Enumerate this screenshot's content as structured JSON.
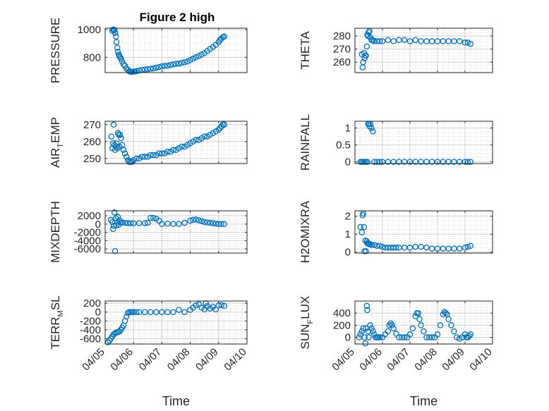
{
  "figure_title": "Figure 2 high",
  "colors": {
    "marker": "#0072BD",
    "axis": "#262626",
    "grid": "#dcdcdc"
  },
  "chart_data": [
    {
      "id": "pressure",
      "type": "scatter",
      "title": "Figure 2 high",
      "ylabel": "PRESSURE",
      "ylabel_parts": [
        "PRESSURE"
      ],
      "xlim": [
        0,
        5
      ],
      "ylim": [
        690,
        1010
      ],
      "yticks": [
        800,
        1000
      ],
      "ytick_labels": [
        "800",
        "1000"
      ],
      "xticks": [
        0,
        1,
        2,
        3,
        4,
        5
      ],
      "xtick_labels": [],
      "x": [
        0.25,
        0.28,
        0.3,
        0.33,
        0.35,
        0.38,
        0.4,
        0.43,
        0.45,
        0.48,
        0.5,
        0.53,
        0.56,
        0.6,
        0.65,
        0.7,
        0.75,
        0.8,
        0.85,
        0.9,
        0.95,
        1,
        1.05,
        1.1,
        1.2,
        1.3,
        1.4,
        1.5,
        1.6,
        1.7,
        1.8,
        1.9,
        2,
        2.1,
        2.2,
        2.3,
        2.4,
        2.5,
        2.6,
        2.7,
        2.8,
        2.9,
        3,
        3.1,
        3.2,
        3.3,
        3.4,
        3.5,
        3.6,
        3.7,
        3.8,
        3.9,
        4,
        4.05,
        4.1,
        4.15,
        4.2
      ],
      "y": [
        990,
        1000,
        1000,
        995,
        975,
        950,
        910,
        870,
        840,
        820,
        810,
        800,
        790,
        770,
        750,
        740,
        720,
        710,
        700,
        695,
        695,
        697,
        698,
        700,
        705,
        710,
        712,
        715,
        718,
        720,
        725,
        730,
        735,
        738,
        740,
        745,
        750,
        753,
        755,
        760,
        765,
        770,
        780,
        790,
        800,
        810,
        820,
        830,
        845,
        860,
        875,
        890,
        910,
        925,
        935,
        945,
        950
      ]
    },
    {
      "id": "theta",
      "type": "scatter",
      "ylabel": "THETA",
      "ylabel_parts": [
        "THETA"
      ],
      "xlim": [
        0,
        5
      ],
      "ylim": [
        252,
        286
      ],
      "yticks": [
        260,
        270,
        280
      ],
      "ytick_labels": [
        "260",
        "270",
        "280"
      ],
      "xticks": [
        0,
        1,
        2,
        3,
        4,
        5
      ],
      "xtick_labels": [],
      "x": [
        0.25,
        0.28,
        0.3,
        0.33,
        0.35,
        0.38,
        0.4,
        0.43,
        0.45,
        0.48,
        0.5,
        0.53,
        0.56,
        0.6,
        0.65,
        0.7,
        0.8,
        0.9,
        1,
        1.2,
        1.4,
        1.6,
        1.8,
        2,
        2.2,
        2.4,
        2.6,
        2.8,
        3,
        3.2,
        3.4,
        3.6,
        3.8,
        4,
        4.1,
        4.2
      ],
      "y": [
        266,
        256,
        260,
        267,
        263,
        265,
        265,
        272,
        281,
        280,
        283,
        284,
        279,
        277,
        277,
        276,
        276,
        276,
        276,
        277,
        276,
        277,
        277,
        276,
        277,
        276,
        276,
        276,
        276,
        276,
        276,
        276,
        276,
        275,
        275,
        274
      ]
    },
    {
      "id": "air_temp",
      "type": "scatter",
      "ylabel": "AIR_TEMP",
      "ylabel_parts": [
        "AIR",
        "T",
        "EMP"
      ],
      "xlim": [
        0,
        5
      ],
      "ylim": [
        247,
        272
      ],
      "yticks": [
        250,
        260,
        270
      ],
      "ytick_labels": [
        "250",
        "260",
        "270"
      ],
      "xticks": [
        0,
        1,
        2,
        3,
        4,
        5
      ],
      "xtick_labels": [],
      "x": [
        0.22,
        0.25,
        0.28,
        0.3,
        0.33,
        0.35,
        0.38,
        0.4,
        0.43,
        0.45,
        0.48,
        0.5,
        0.53,
        0.56,
        0.6,
        0.65,
        0.7,
        0.75,
        0.8,
        0.85,
        0.9,
        0.95,
        1,
        1.1,
        1.2,
        1.3,
        1.4,
        1.5,
        1.6,
        1.7,
        1.8,
        1.9,
        2,
        2.1,
        2.2,
        2.3,
        2.4,
        2.5,
        2.6,
        2.7,
        2.8,
        2.9,
        3,
        3.1,
        3.2,
        3.3,
        3.4,
        3.5,
        3.6,
        3.7,
        3.8,
        3.9,
        4,
        4.05,
        4.1,
        4.15,
        4.2
      ],
      "y": [
        263,
        256,
        259,
        270,
        258,
        255,
        257,
        259,
        256,
        265,
        264,
        257,
        264,
        262,
        258,
        255,
        253,
        251,
        249,
        248,
        248,
        248,
        249,
        250,
        250,
        251,
        251,
        251,
        252,
        252,
        252,
        253,
        253,
        253,
        254,
        254,
        255,
        255,
        256,
        257,
        257,
        258,
        259,
        260,
        261,
        261,
        262,
        263,
        263,
        264,
        265,
        266,
        267,
        268,
        269,
        270,
        270
      ]
    },
    {
      "id": "rainfall",
      "type": "scatter",
      "ylabel": "RAINFALL",
      "ylabel_parts": [
        "RAINFALL"
      ],
      "xlim": [
        0,
        5
      ],
      "ylim": [
        -0.05,
        1.2
      ],
      "yticks": [
        0,
        0.5,
        1
      ],
      "ytick_labels": [
        "0",
        "0.5",
        "1"
      ],
      "xticks": [
        0,
        1,
        2,
        3,
        4,
        5
      ],
      "xtick_labels": [],
      "x": [
        0.2,
        0.25,
        0.3,
        0.35,
        0.4,
        0.45,
        0.48,
        0.5,
        0.53,
        0.56,
        0.6,
        0.65,
        0.7,
        0.8,
        0.9,
        1,
        1.2,
        1.4,
        1.6,
        1.8,
        2,
        2.2,
        2.4,
        2.6,
        2.8,
        3,
        3.2,
        3.4,
        3.6,
        3.8,
        4,
        4.1,
        4.2
      ],
      "y": [
        0,
        0,
        0,
        0,
        0,
        0,
        1.12,
        1.12,
        1.05,
        1.12,
        1,
        0.9,
        0,
        0,
        0,
        0,
        0,
        0,
        0,
        0,
        0,
        0,
        0,
        0,
        0,
        0,
        0,
        0,
        0,
        0,
        0,
        0,
        0
      ]
    },
    {
      "id": "mixdepth",
      "type": "scatter",
      "ylabel": "MIXDEPTH",
      "ylabel_parts": [
        "MIXDEPTH"
      ],
      "xlim": [
        0,
        5
      ],
      "ylim": [
        -7000,
        3200
      ],
      "yticks": [
        -6000,
        -4000,
        -2000,
        0,
        2000
      ],
      "ytick_labels": [
        "-6000",
        "-4000",
        "-2000",
        "0",
        "2000"
      ],
      "xticks": [
        0,
        1,
        2,
        3,
        4,
        5
      ],
      "xtick_labels": [],
      "x": [
        0.2,
        0.25,
        0.28,
        0.3,
        0.33,
        0.35,
        0.38,
        0.4,
        0.43,
        0.45,
        0.48,
        0.5,
        0.55,
        0.6,
        0.7,
        0.8,
        0.9,
        1,
        1.2,
        1.4,
        1.5,
        1.6,
        1.7,
        1.8,
        1.9,
        2,
        2.2,
        2.4,
        2.6,
        2.8,
        3,
        3.1,
        3.2,
        3.3,
        3.4,
        3.5,
        3.6,
        3.7,
        3.8,
        3.9,
        4,
        4.1,
        4.2
      ],
      "y": [
        1000,
        500,
        -1200,
        -400,
        2800,
        -6500,
        1400,
        -300,
        400,
        1700,
        -200,
        900,
        400,
        400,
        300,
        200,
        200,
        200,
        200,
        200,
        300,
        1500,
        1500,
        1300,
        800,
        0,
        100,
        0,
        0,
        300,
        800,
        1000,
        1100,
        900,
        700,
        500,
        400,
        300,
        200,
        100,
        0,
        0,
        0
      ]
    },
    {
      "id": "h2omixra",
      "type": "scatter",
      "ylabel": "H2OMIXRA",
      "ylabel_parts": [
        "H2OMIXRA"
      ],
      "xlim": [
        0,
        5
      ],
      "ylim": [
        -0.05,
        2.3
      ],
      "yticks": [
        0,
        1,
        2
      ],
      "ytick_labels": [
        "0",
        "1",
        "2"
      ],
      "xticks": [
        0,
        1,
        2,
        3,
        4,
        5
      ],
      "xtick_labels": [],
      "x": [
        0.2,
        0.25,
        0.28,
        0.3,
        0.33,
        0.35,
        0.38,
        0.4,
        0.43,
        0.45,
        0.48,
        0.5,
        0.55,
        0.6,
        0.7,
        0.8,
        0.9,
        1,
        1.1,
        1.2,
        1.3,
        1.4,
        1.5,
        1.6,
        1.8,
        2,
        2.2,
        2.4,
        2.6,
        2.8,
        3,
        3.2,
        3.4,
        3.6,
        3.8,
        4,
        4.1,
        4.2
      ],
      "y": [
        1.4,
        1.1,
        2.05,
        2.15,
        1.4,
        0.05,
        0.65,
        0.05,
        0.6,
        0.5,
        0.5,
        0.45,
        0.45,
        0.4,
        0.4,
        0.35,
        0.35,
        0.3,
        0.25,
        0.25,
        0.25,
        0.25,
        0.25,
        0.25,
        0.25,
        0.25,
        0.3,
        0.3,
        0.25,
        0.2,
        0.2,
        0.2,
        0.2,
        0.2,
        0.2,
        0.25,
        0.3,
        0.35
      ]
    },
    {
      "id": "terr_msl",
      "type": "scatter",
      "ylabel": "TERR_MSL",
      "ylabel_parts": [
        "TERR",
        "M",
        "SL"
      ],
      "xlim": [
        0,
        5
      ],
      "ylim": [
        -720,
        250
      ],
      "yticks": [
        -600,
        -400,
        -200,
        0,
        200
      ],
      "ytick_labels": [
        "-600",
        "-400",
        "-200",
        "0",
        "200"
      ],
      "xticks": [
        0,
        1,
        2,
        3,
        4,
        5
      ],
      "xtick_labels": [
        "04/05",
        "04/06",
        "04/07",
        "04/08",
        "04/09",
        "04/10"
      ],
      "xlabel": "Time",
      "x": [
        0.1,
        0.15,
        0.2,
        0.25,
        0.3,
        0.35,
        0.4,
        0.45,
        0.5,
        0.55,
        0.6,
        0.65,
        0.7,
        0.75,
        0.8,
        0.85,
        0.9,
        0.95,
        1,
        1.1,
        1.2,
        1.4,
        1.6,
        1.8,
        2,
        2.2,
        2.4,
        2.6,
        2.8,
        3,
        3.1,
        3.2,
        3.3,
        3.4,
        3.5,
        3.55,
        3.6,
        3.7,
        3.8,
        3.9,
        4,
        4.1,
        4.2
      ],
      "y": [
        -680,
        -640,
        -600,
        -550,
        -500,
        -480,
        -460,
        -450,
        -440,
        -400,
        -350,
        -300,
        -200,
        -100,
        -20,
        0,
        0,
        0,
        0,
        0,
        0,
        0,
        0,
        0,
        0,
        0,
        0,
        50,
        0,
        50,
        100,
        150,
        180,
        100,
        60,
        200,
        130,
        80,
        120,
        60,
        150,
        160,
        140
      ]
    },
    {
      "id": "sun_flux",
      "type": "scatter",
      "ylabel": "SUN_FLUX",
      "ylabel_parts": [
        "SUN",
        "F",
        "LUX"
      ],
      "xlim": [
        0,
        5
      ],
      "ylim": [
        -110,
        600
      ],
      "yticks": [
        0,
        200,
        400
      ],
      "ytick_labels": [
        "0",
        "200",
        "400"
      ],
      "xticks": [
        0,
        1,
        2,
        3,
        4,
        5
      ],
      "xtick_labels": [
        "04/05",
        "04/06",
        "04/07",
        "04/08",
        "04/09",
        "04/10"
      ],
      "xlabel": "Time",
      "x": [
        0.15,
        0.2,
        0.25,
        0.3,
        0.35,
        0.38,
        0.4,
        0.43,
        0.45,
        0.48,
        0.5,
        0.55,
        0.6,
        0.65,
        0.7,
        0.75,
        0.8,
        0.85,
        0.9,
        1,
        1.1,
        1.2,
        1.25,
        1.3,
        1.35,
        1.4,
        1.5,
        1.6,
        1.7,
        1.8,
        1.9,
        2,
        2.1,
        2.2,
        2.25,
        2.3,
        2.35,
        2.4,
        2.5,
        2.6,
        2.7,
        2.8,
        2.9,
        3,
        3.1,
        3.2,
        3.25,
        3.3,
        3.35,
        3.4,
        3.5,
        3.6,
        3.7,
        3.8,
        3.9,
        4,
        4.05,
        4.1,
        4.15,
        4.2
      ],
      "y": [
        0,
        50,
        100,
        150,
        0,
        -100,
        150,
        520,
        450,
        100,
        0,
        200,
        150,
        100,
        50,
        0,
        0,
        0,
        0,
        0,
        50,
        100,
        200,
        230,
        200,
        150,
        60,
        0,
        0,
        0,
        0,
        50,
        150,
        350,
        400,
        400,
        300,
        200,
        100,
        0,
        0,
        0,
        0,
        50,
        200,
        380,
        420,
        400,
        380,
        300,
        200,
        100,
        0,
        -20,
        0,
        50,
        0,
        0,
        20,
        50
      ]
    }
  ]
}
